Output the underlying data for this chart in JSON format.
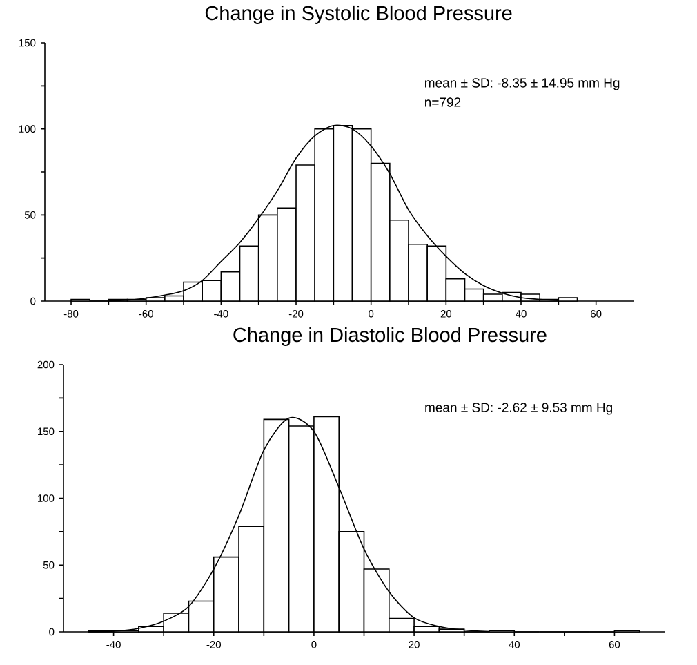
{
  "chart_data": [
    {
      "type": "histogram",
      "title": "Change in Systolic Blood Pressure",
      "annotations": [
        "mean ± SD: -8.35 ± 14.95 mm Hg",
        "n=792"
      ],
      "bins": [
        -80,
        -75,
        -70,
        -65,
        -60,
        -55,
        -50,
        -45,
        -40,
        -35,
        -30,
        -25,
        -20,
        -15,
        -10,
        -5,
        0,
        5,
        10,
        15,
        20,
        25,
        30,
        35,
        40,
        45,
        50,
        55
      ],
      "series": [
        {
          "color": "#ffffff",
          "values": [
            1,
            0,
            1,
            1,
            2,
            3,
            11,
            12,
            17,
            32,
            50,
            54,
            79,
            100,
            102,
            100,
            80,
            47,
            33,
            32,
            13,
            7,
            4,
            5,
            4,
            1,
            2
          ]
        },
        {
          "type": "line",
          "color": "#000000",
          "x": [
            -70,
            -65,
            -60,
            -55,
            -50,
            -45,
            -40,
            -35,
            -30,
            -25,
            -20,
            -15,
            -10,
            -5,
            0,
            5,
            10,
            15,
            20,
            25,
            30,
            35,
            40,
            45,
            50
          ],
          "values": [
            0.2,
            0.5,
            1.7,
            3.5,
            6,
            12,
            23,
            34,
            48,
            64,
            83,
            96,
            102,
            100,
            90,
            74,
            53,
            38,
            26,
            16,
            9,
            4.6,
            2,
            1,
            0.3
          ]
        }
      ],
      "xlim": [
        -87,
        70
      ],
      "xticks": [
        -80,
        {
          "value": -70,
          "label": null
        },
        -60,
        {
          "value": -50,
          "label": null
        },
        -40,
        {
          "value": -30,
          "label": null
        },
        -20,
        {
          "value": -10,
          "label": null
        },
        0,
        {
          "value": 10,
          "label": null
        },
        20,
        {
          "value": 30,
          "label": null
        },
        40,
        {
          "value": 50,
          "label": null
        },
        60
      ],
      "ylim": [
        0,
        150
      ],
      "yticks": [
        0,
        {
          "value": 25,
          "label": null
        },
        50,
        {
          "value": 75,
          "label": null
        },
        100,
        {
          "value": 125,
          "label": null
        },
        150
      ]
    },
    {
      "type": "histogram",
      "title": "Change in Diastolic Blood Pressure",
      "annotations": [
        "mean ± SD: -2.62 ± 9.53 mm Hg"
      ],
      "bins": [
        -45,
        -40,
        -35,
        -30,
        -25,
        -20,
        -15,
        -10,
        -5,
        0,
        5,
        10,
        15,
        20,
        25,
        30,
        35,
        40,
        45,
        50,
        55,
        60,
        65
      ],
      "series": [
        {
          "color": "#ffffff",
          "values": [
            1,
            1,
            4,
            14,
            23,
            56,
            79,
            159,
            154,
            161,
            75,
            47,
            10,
            4,
            2,
            0,
            1,
            0,
            0,
            0,
            0,
            1
          ]
        },
        {
          "type": "line",
          "color": "#000000",
          "x": [
            -45,
            -40,
            -35,
            -30,
            -25,
            -20,
            -15,
            -10,
            -5,
            0,
            5,
            10,
            15,
            20,
            25,
            30,
            35
          ],
          "values": [
            0.1,
            0.5,
            2.6,
            8,
            19,
            47,
            87,
            136,
            160,
            150,
            108,
            62,
            30,
            10.5,
            4,
            1.3,
            0.3
          ]
        }
      ],
      "xlim": [
        -50,
        70
      ],
      "xticks": [
        -40,
        {
          "value": -30,
          "label": null
        },
        -20,
        {
          "value": -10,
          "label": null
        },
        0,
        {
          "value": 10,
          "label": null
        },
        20,
        {
          "value": 30,
          "label": null
        },
        40,
        {
          "value": 50,
          "label": null
        },
        60
      ],
      "ylim": [
        0,
        200
      ],
      "yticks": [
        0,
        {
          "value": 25,
          "label": null
        },
        50,
        {
          "value": 75,
          "label": null
        },
        100,
        {
          "value": 125,
          "label": null
        },
        150,
        {
          "value": 175,
          "label": null
        },
        200
      ]
    }
  ]
}
